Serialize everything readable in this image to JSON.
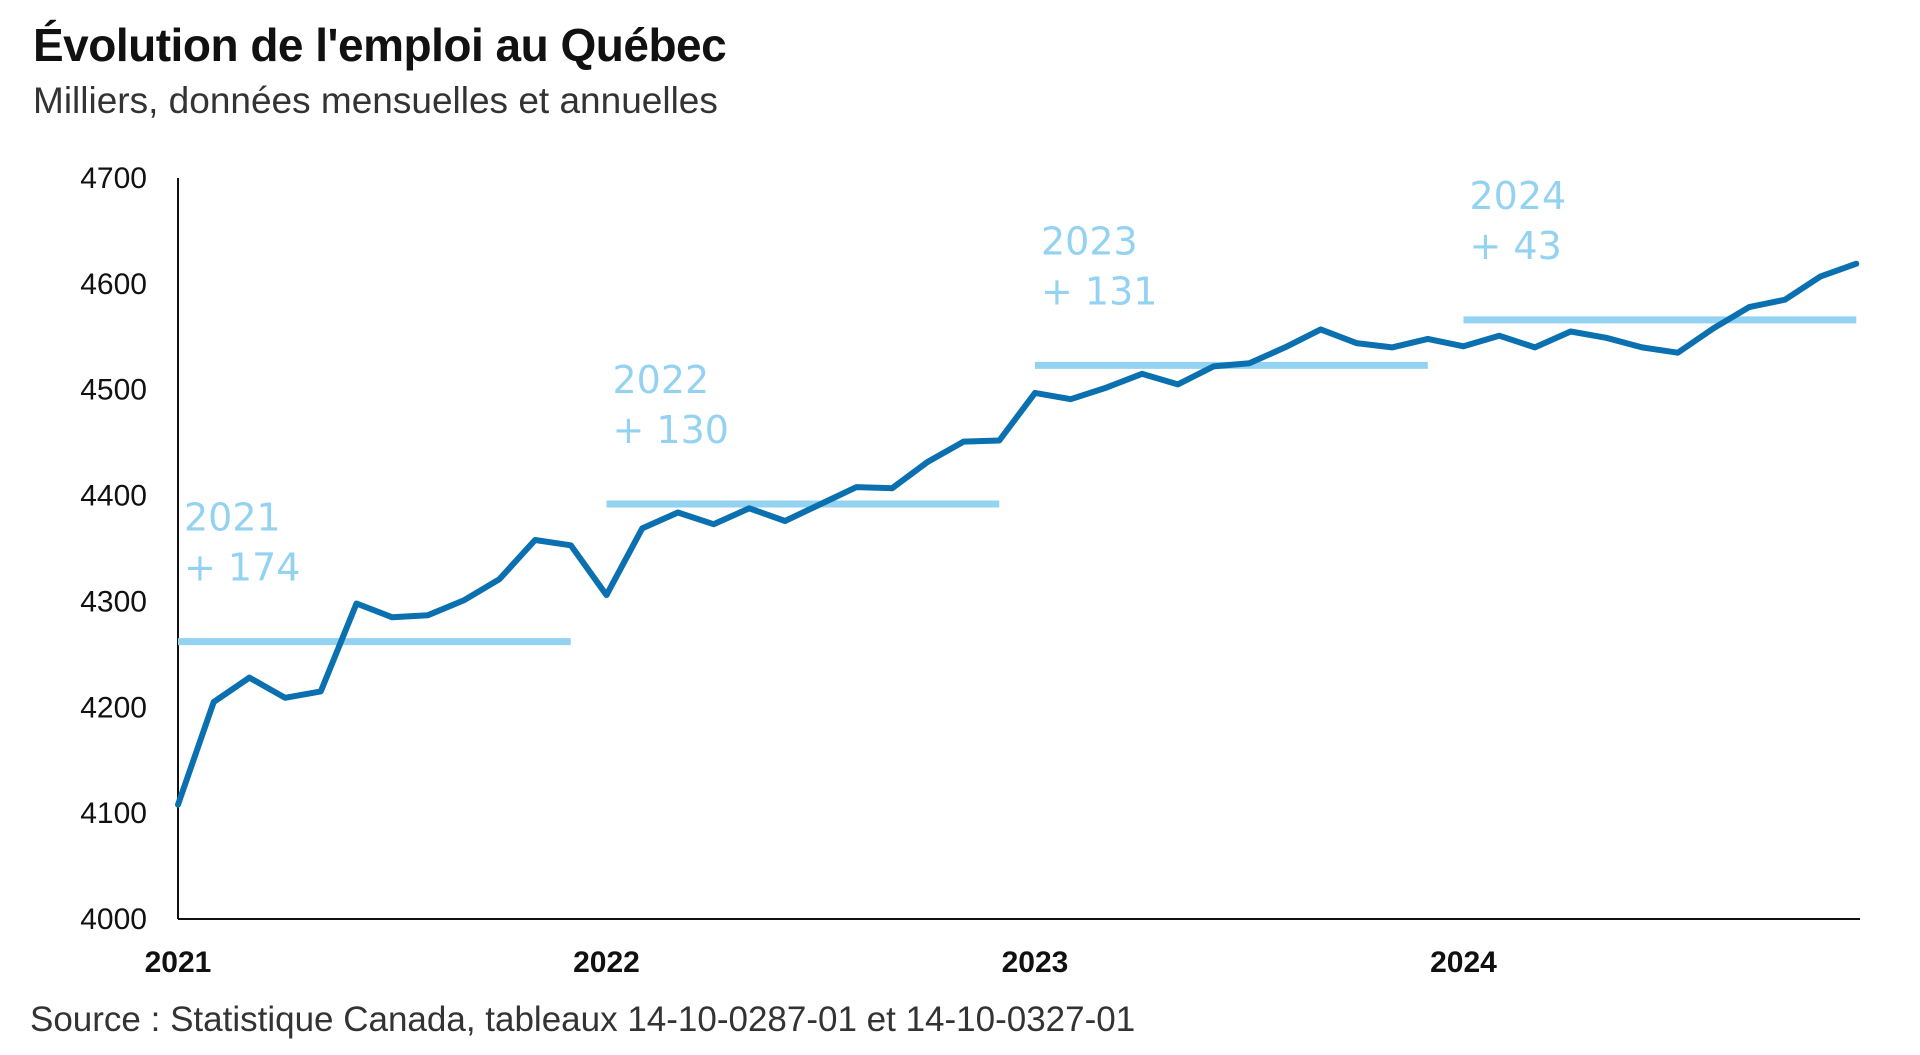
{
  "chart_data": {
    "type": "line",
    "title": "Évolution de l'emploi au Québec",
    "subtitle": "Milliers, données mensuelles et annuelles",
    "source": "Source : Statistique Canada, tableaux 14-10-0287-01 et 14-10-0327-01",
    "ylim": [
      4000,
      4700
    ],
    "yticks": [
      "4000",
      "4100",
      "4200",
      "4300",
      "4400",
      "4500",
      "4600",
      "4700"
    ],
    "xticks": [
      "2021",
      "2022",
      "2023",
      "2024"
    ],
    "grid": false,
    "colors": {
      "monthly": "#0a70b0",
      "annual": "#94d2f2"
    },
    "series": [
      {
        "values": [
          4108,
          4205,
          4228,
          4209,
          4215,
          4298,
          4285,
          4287,
          4301,
          4321,
          4358,
          4353,
          4306,
          4369,
          4384,
          4373,
          4388,
          4376,
          4392,
          4408,
          4407,
          4432,
          4451,
          4452,
          4497,
          4491,
          4502,
          4515,
          4505,
          4522,
          4525,
          4540,
          4557,
          4544,
          4540,
          4548,
          4541,
          4551,
          4540,
          4555,
          4549,
          4540,
          4535,
          4558,
          4578,
          4585,
          4607,
          4619
        ]
      },
      {
        "annual": [
          {
            "year": "2021",
            "value": 4262,
            "label": "2021",
            "change": "+ 174"
          },
          {
            "year": "2022",
            "value": 4392,
            "label": "2022",
            "change": "+ 130"
          },
          {
            "year": "2023",
            "value": 4523,
            "label": "2023",
            "change": "+ 131"
          },
          {
            "year": "2024",
            "value": 4566,
            "label": "2024",
            "change": "+ 43"
          }
        ]
      }
    ]
  }
}
